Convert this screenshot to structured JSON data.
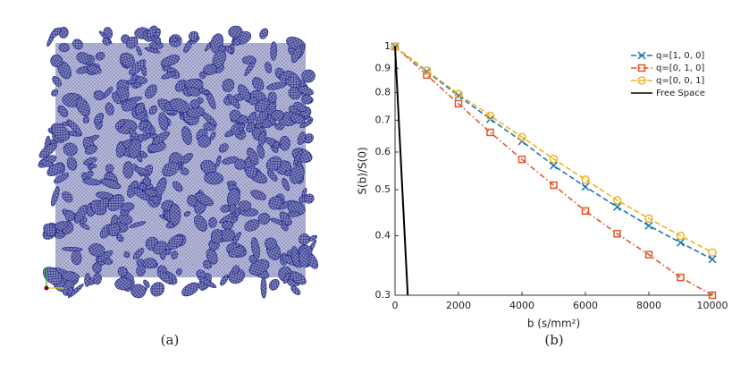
{
  "captions": [
    "(a)",
    "(b)"
  ],
  "chart_data": {
    "type": "line",
    "xlabel": "b (s/mm²)",
    "ylabel": "S(b)/S(0)",
    "xlim": [
      0,
      10000
    ],
    "xticks": [
      0,
      2000,
      4000,
      6000,
      8000,
      10000
    ],
    "ylim": [
      0.3,
      1
    ],
    "yticks": [
      0.3,
      0.4,
      0.5,
      0.6,
      0.7,
      0.8,
      0.9,
      1
    ],
    "ylog": true,
    "legend": "upper right",
    "series": [
      {
        "name": "q=[1, 0, 0]",
        "color": "#1f77b4",
        "marker": "x",
        "linestyle": "dashed",
        "x": [
          0,
          1000,
          2000,
          3000,
          4000,
          5000,
          6000,
          7000,
          8000,
          9000,
          10000
        ],
        "values": [
          1,
          0.886,
          0.788,
          0.704,
          0.632,
          0.562,
          0.507,
          0.46,
          0.42,
          0.387,
          0.357
        ]
      },
      {
        "name": "q=[0, 1, 0]",
        "color": "#e0582a",
        "marker": "square",
        "linestyle": "dashdot",
        "x": [
          0,
          1000,
          2000,
          3000,
          4000,
          5000,
          6000,
          7000,
          8000,
          9000,
          10000
        ],
        "values": [
          1,
          0.871,
          0.758,
          0.66,
          0.579,
          0.511,
          0.451,
          0.404,
          0.365,
          0.327,
          0.3
        ]
      },
      {
        "name": "q=[0, 0, 1]",
        "color": "#f0b323",
        "marker": "circle",
        "linestyle": "dashed",
        "x": [
          0,
          1000,
          2000,
          3000,
          4000,
          5000,
          6000,
          7000,
          8000,
          9000,
          10000
        ],
        "values": [
          1,
          0.89,
          0.795,
          0.715,
          0.645,
          0.58,
          0.525,
          0.475,
          0.435,
          0.4,
          0.369
        ]
      },
      {
        "name": "Free Space",
        "color": "#000000",
        "marker": "none",
        "linestyle": "solid",
        "x": [
          0,
          400
        ],
        "values": [
          1,
          0.3
        ]
      }
    ]
  }
}
